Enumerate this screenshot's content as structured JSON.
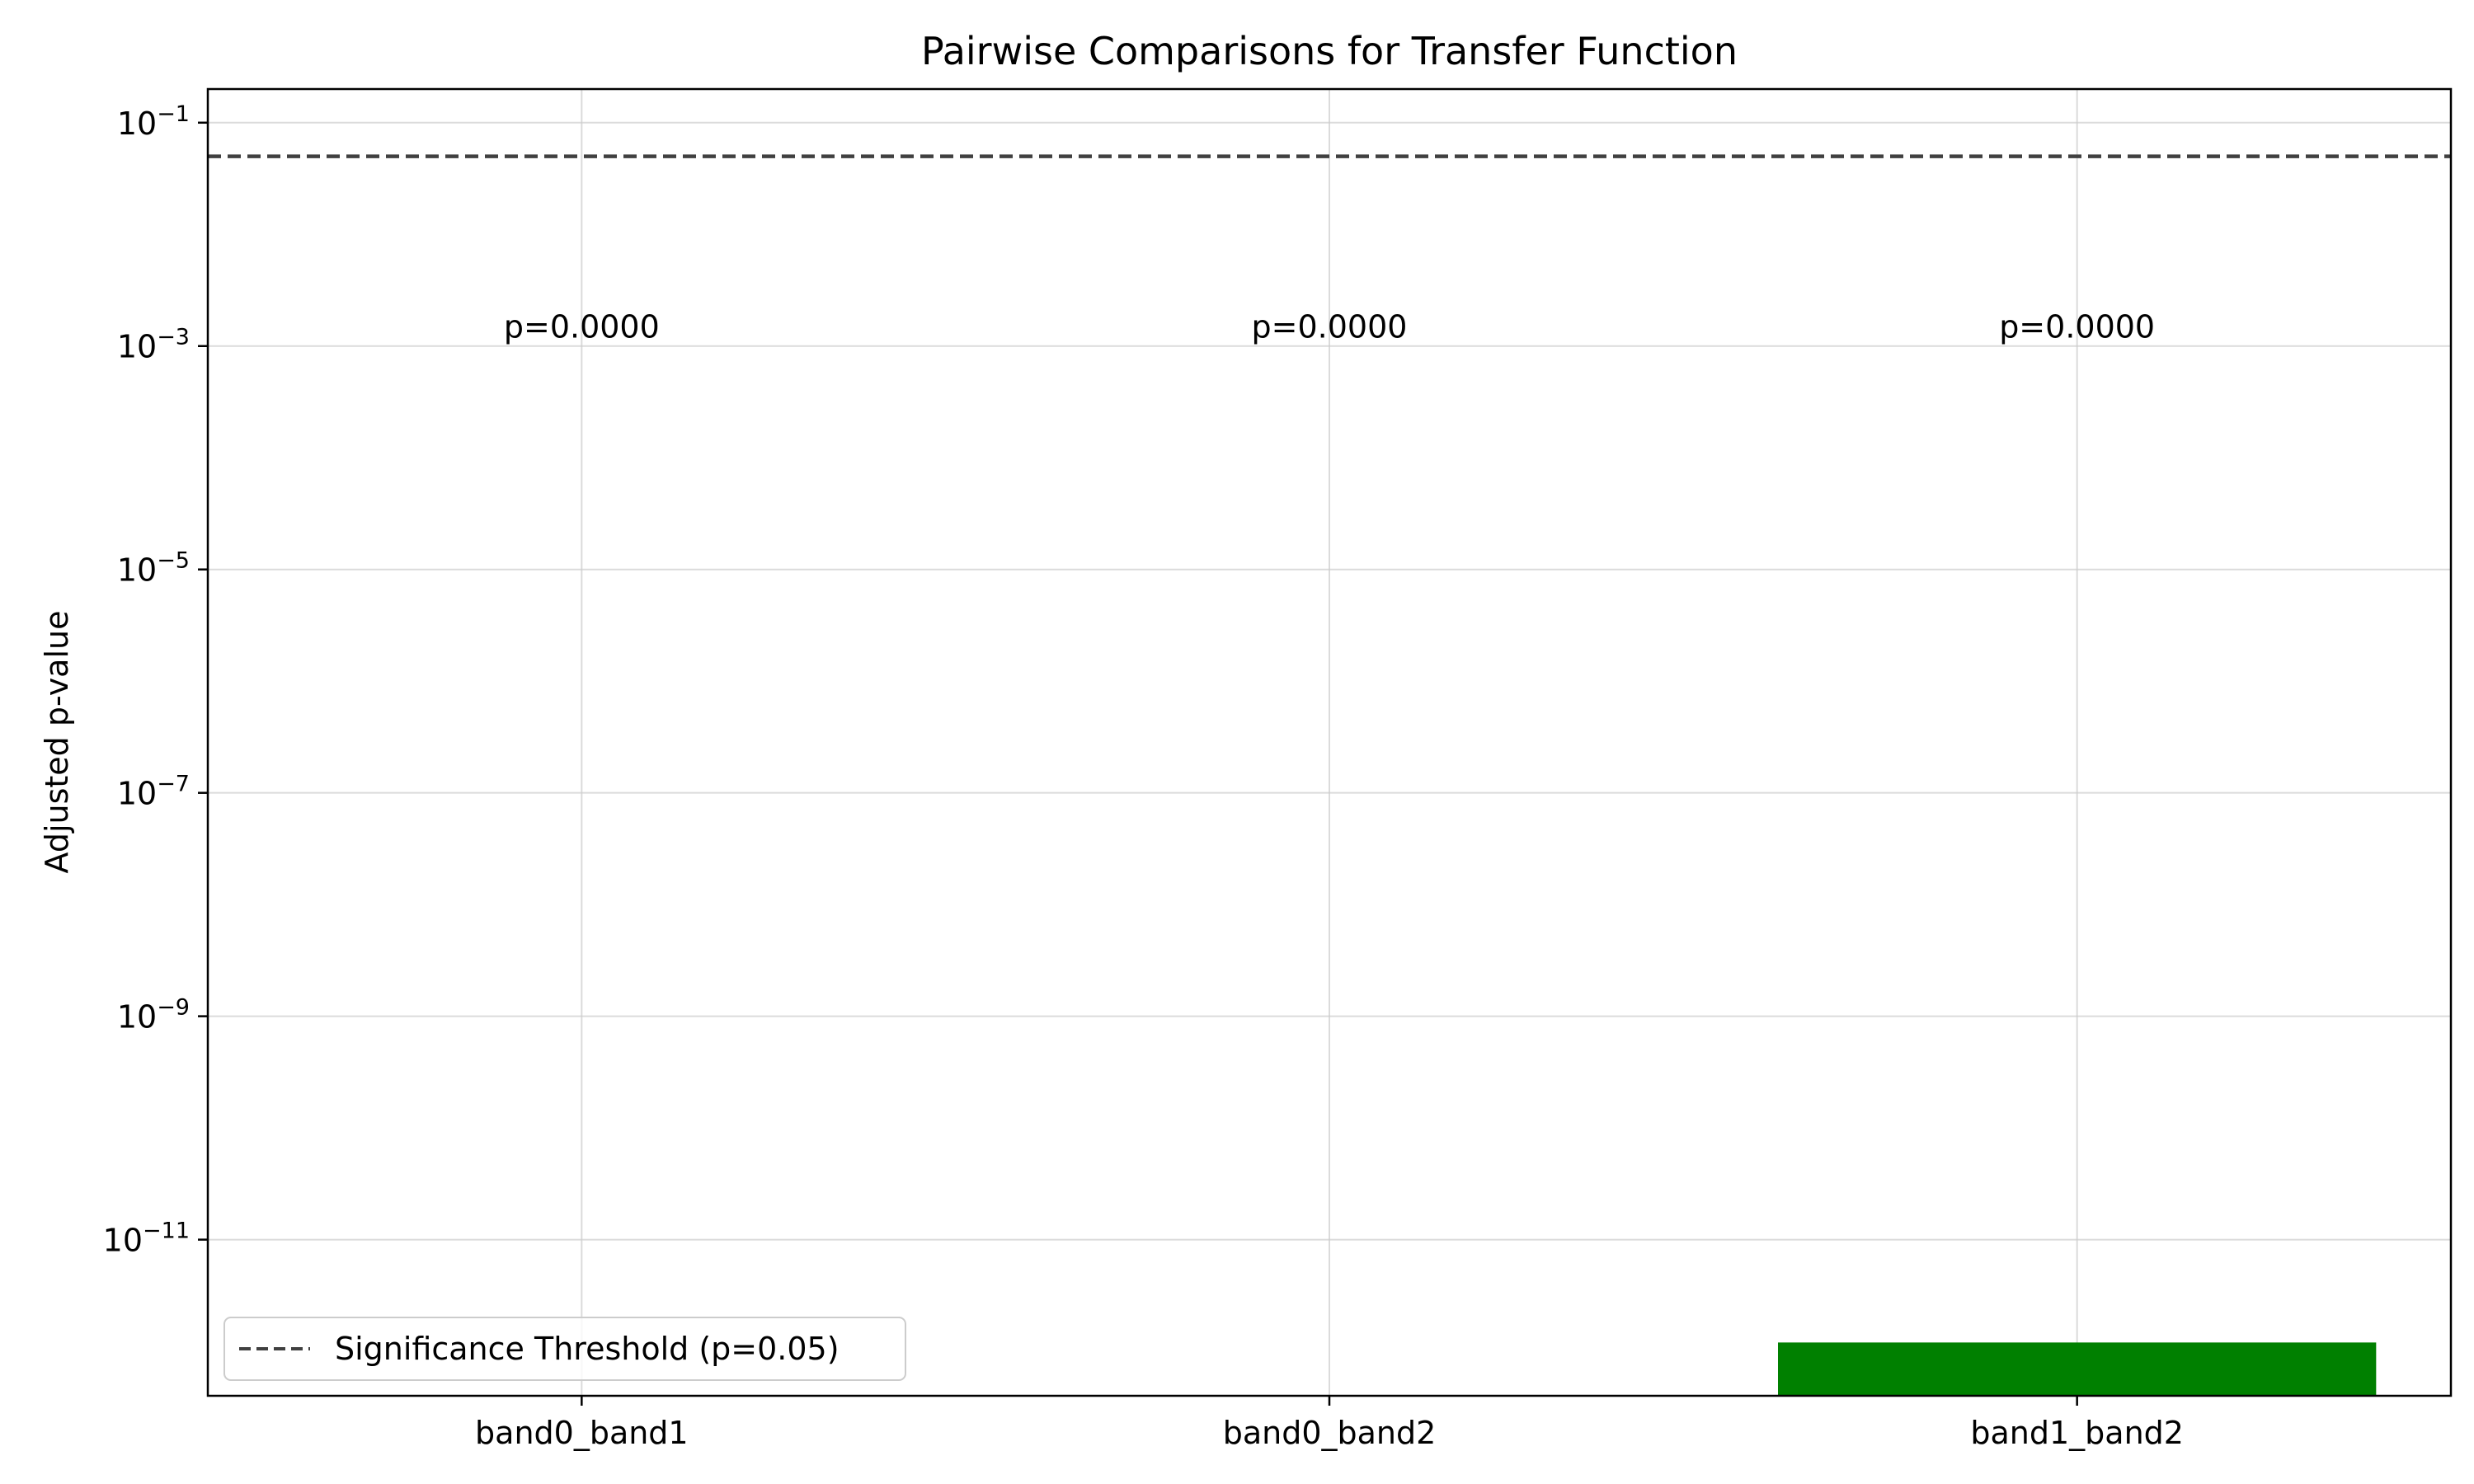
{
  "chart_data": {
    "type": "bar",
    "title": "Pairwise Comparisons for Transfer Function",
    "xlabel": "",
    "ylabel": "Adjusted p-value",
    "yscale": "log",
    "ylim": [
      4e-13,
      0.2
    ],
    "grid": true,
    "categories": [
      "band0_band1",
      "band0_band2",
      "band1_band2"
    ],
    "values": [
      0,
      0,
      1.2e-12
    ],
    "data_labels": [
      "p=0.0000",
      "p=0.0000",
      "p=0.0000"
    ],
    "bar_colors": [
      "#008000",
      "#008000",
      "#008000"
    ],
    "y_tick_values": [
      1e-11,
      1e-09,
      1e-07,
      1e-05,
      0.001,
      0.1
    ],
    "y_tick_labels": [
      {
        "base": "10",
        "exp": "−11"
      },
      {
        "base": "10",
        "exp": "−9"
      },
      {
        "base": "10",
        "exp": "−7"
      },
      {
        "base": "10",
        "exp": "−5"
      },
      {
        "base": "10",
        "exp": "−3"
      },
      {
        "base": "10",
        "exp": "−1"
      }
    ],
    "threshold": {
      "value": 0.05,
      "label": "Significance Threshold (p=0.05)",
      "color": "#404040",
      "style": "dashed"
    },
    "legend": {
      "placement": "lower-left",
      "entries": [
        "Significance Threshold (p=0.05)"
      ]
    }
  }
}
